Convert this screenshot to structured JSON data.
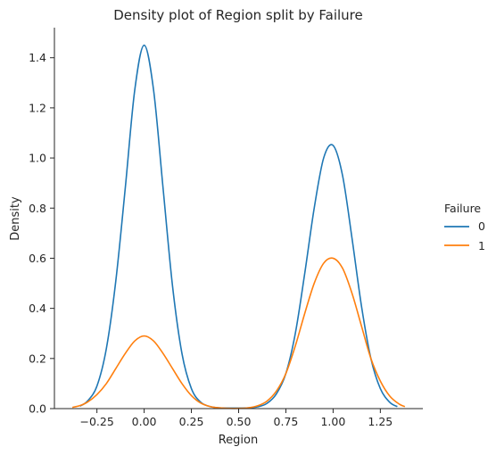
{
  "chart_data": {
    "type": "line",
    "title": "Density plot of Region split by Failure",
    "xlabel": "Region",
    "ylabel": "Density",
    "xlim": [
      -0.475,
      1.475
    ],
    "ylim": [
      0,
      1.52
    ],
    "xticks": [
      "−0.25",
      "0.00",
      "0.25",
      "0.50",
      "0.75",
      "1.00",
      "1.25"
    ],
    "xtick_values": [
      -0.25,
      0,
      0.25,
      0.5,
      0.75,
      1.0,
      1.25
    ],
    "yticks": [
      "0.0",
      "0.2",
      "0.4",
      "0.6",
      "0.8",
      "1.0",
      "1.2",
      "1.4"
    ],
    "ytick_values": [
      0,
      0.2,
      0.4,
      0.6,
      0.8,
      1.0,
      1.2,
      1.4
    ],
    "grid": false,
    "legend": {
      "title": "Failure",
      "placement": "right"
    },
    "series": [
      {
        "name": "0",
        "color": "#1f77b4",
        "x": [
          -0.34,
          -0.3,
          -0.25,
          -0.2,
          -0.15,
          -0.1,
          -0.05,
          0.0,
          0.05,
          0.1,
          0.15,
          0.2,
          0.25,
          0.3,
          0.35,
          0.4,
          0.45,
          0.5,
          0.55,
          0.6,
          0.65,
          0.7,
          0.75,
          0.8,
          0.85,
          0.9,
          0.95,
          1.0,
          1.05,
          1.1,
          1.15,
          1.2,
          1.25,
          1.3,
          1.34
        ],
        "y": [
          0.01,
          0.03,
          0.09,
          0.24,
          0.51,
          0.88,
          1.27,
          1.45,
          1.27,
          0.88,
          0.49,
          0.22,
          0.08,
          0.025,
          0.008,
          0.003,
          0.002,
          0.002,
          0.003,
          0.007,
          0.021,
          0.059,
          0.14,
          0.3,
          0.54,
          0.8,
          1.0,
          1.05,
          0.93,
          0.68,
          0.41,
          0.2,
          0.08,
          0.025,
          0.008
        ]
      },
      {
        "name": "1",
        "color": "#ff7f0e",
        "x": [
          -0.38,
          -0.34,
          -0.3,
          -0.25,
          -0.2,
          -0.15,
          -0.1,
          -0.05,
          0.0,
          0.05,
          0.1,
          0.15,
          0.2,
          0.25,
          0.3,
          0.35,
          0.4,
          0.45,
          0.5,
          0.55,
          0.6,
          0.65,
          0.7,
          0.75,
          0.8,
          0.85,
          0.9,
          0.95,
          1.0,
          1.05,
          1.1,
          1.15,
          1.2,
          1.25,
          1.3,
          1.35,
          1.38
        ],
        "y": [
          0.005,
          0.012,
          0.026,
          0.056,
          0.1,
          0.16,
          0.22,
          0.27,
          0.29,
          0.27,
          0.22,
          0.16,
          0.1,
          0.052,
          0.022,
          0.008,
          0.003,
          0.001,
          0.001,
          0.003,
          0.011,
          0.03,
          0.07,
          0.14,
          0.25,
          0.38,
          0.5,
          0.58,
          0.6,
          0.56,
          0.46,
          0.33,
          0.2,
          0.11,
          0.05,
          0.018,
          0.008
        ]
      }
    ]
  }
}
